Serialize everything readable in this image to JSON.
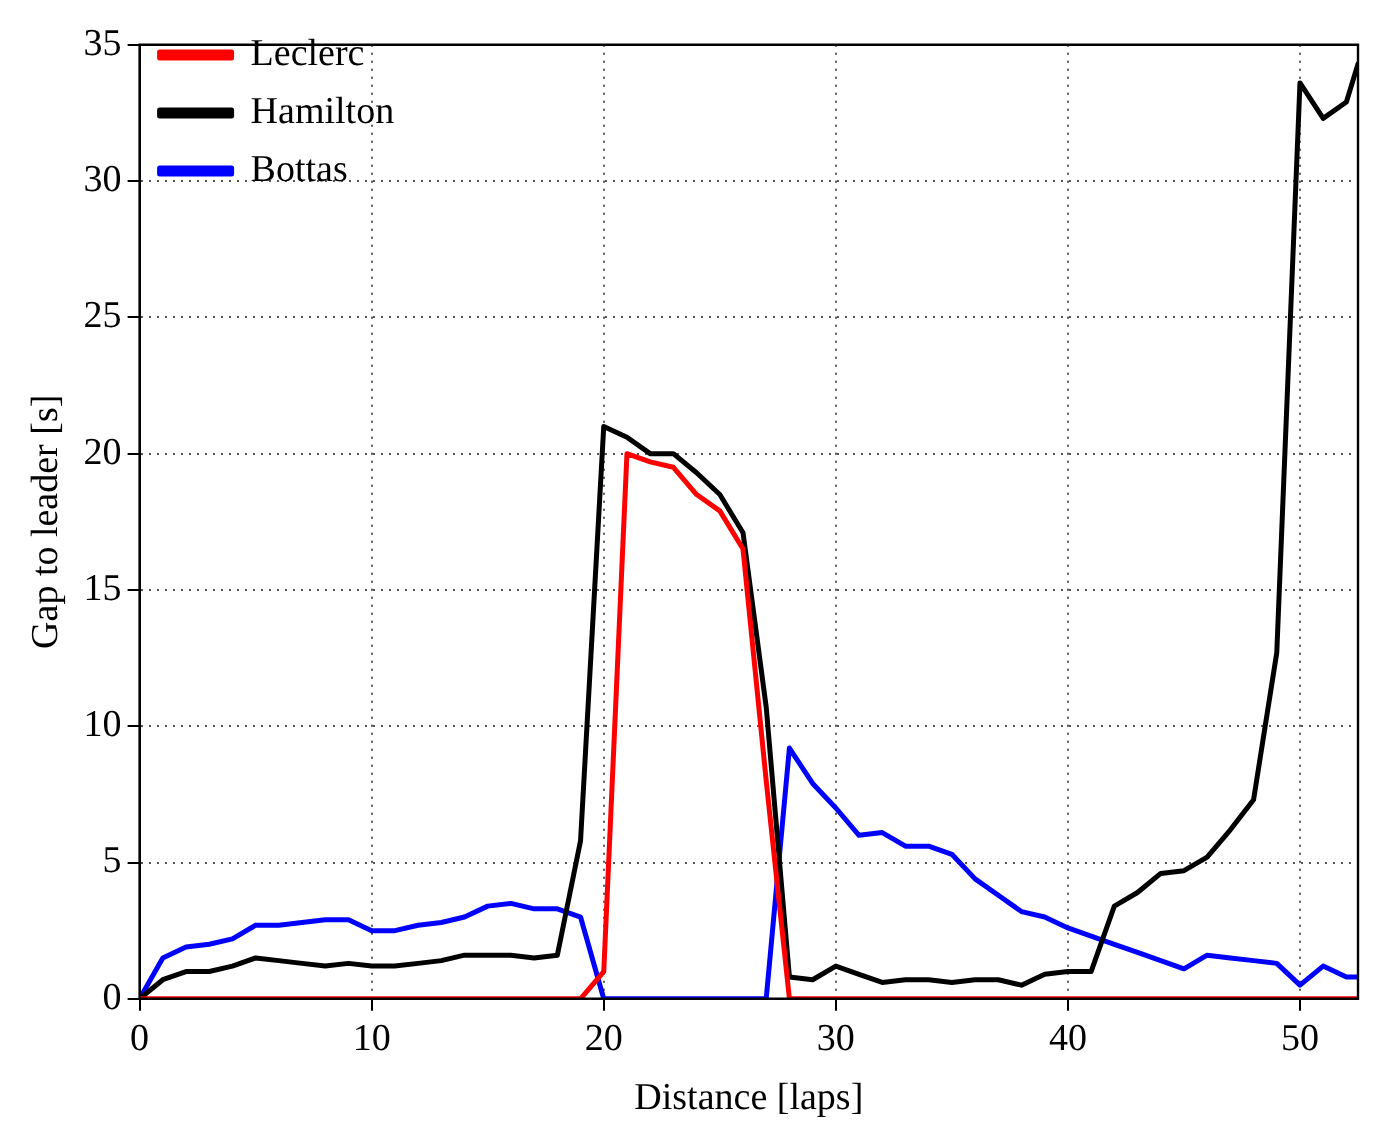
{
  "chart_data": {
    "type": "line",
    "xlabel": "Distance [laps]",
    "ylabel": "Gap to leader [s]",
    "x": [
      0,
      1,
      2,
      3,
      4,
      5,
      6,
      7,
      8,
      9,
      10,
      11,
      12,
      13,
      14,
      15,
      16,
      17,
      18,
      19,
      20,
      21,
      22,
      23,
      24,
      25,
      26,
      27,
      28,
      29,
      30,
      31,
      32,
      33,
      34,
      35,
      36,
      37,
      38,
      39,
      40,
      41,
      42,
      43,
      44,
      45,
      46,
      47,
      48,
      49,
      50,
      51,
      52,
      52.5
    ],
    "series": [
      {
        "name": "Leclerc",
        "color": "#ff0000",
        "values": [
          0,
          0,
          0,
          0,
          0,
          0,
          0,
          0,
          0,
          0,
          0,
          0,
          0,
          0,
          0,
          0,
          0,
          0,
          0,
          0,
          1.0,
          20.0,
          19.7,
          19.5,
          18.5,
          17.9,
          16.5,
          8.0,
          0,
          0,
          0,
          0,
          0,
          0,
          0,
          0,
          0,
          0,
          0,
          0,
          0,
          0,
          0,
          0,
          0,
          0,
          0,
          0,
          0,
          0,
          0,
          0,
          0,
          0
        ]
      },
      {
        "name": "Hamilton",
        "color": "#000000",
        "values": [
          0,
          0.7,
          1.0,
          1.0,
          1.2,
          1.5,
          1.4,
          1.3,
          1.2,
          1.3,
          1.2,
          1.2,
          1.3,
          1.4,
          1.6,
          1.6,
          1.6,
          1.5,
          1.6,
          5.8,
          21.0,
          20.6,
          20.0,
          20.0,
          19.3,
          18.5,
          17.1,
          10.7,
          0.8,
          0.7,
          1.2,
          0.9,
          0.6,
          0.7,
          0.7,
          0.6,
          0.7,
          0.7,
          0.5,
          0.9,
          1.0,
          1.0,
          3.4,
          3.9,
          4.6,
          4.7,
          5.2,
          6.2,
          7.3,
          12.7,
          33.6,
          32.3,
          32.9,
          34.3
        ]
      },
      {
        "name": "Bottas",
        "color": "#0000ff",
        "values": [
          0,
          1.5,
          1.9,
          2.0,
          2.2,
          2.7,
          2.7,
          2.8,
          2.9,
          2.9,
          2.5,
          2.5,
          2.7,
          2.8,
          3.0,
          3.4,
          3.5,
          3.3,
          3.3,
          3.0,
          0,
          0,
          0,
          0,
          0,
          0,
          0,
          0,
          9.2,
          7.9,
          7.0,
          6.0,
          6.1,
          5.6,
          5.6,
          5.3,
          4.4,
          3.8,
          3.2,
          3.0,
          2.6,
          2.3,
          2.0,
          1.7,
          1.4,
          1.1,
          1.6,
          1.5,
          1.4,
          1.3,
          0.5,
          1.2,
          0.8,
          0.8
        ]
      }
    ],
    "xlim": [
      0,
      52.5
    ],
    "xticks": [
      0,
      10,
      20,
      30,
      40,
      50
    ],
    "ylim": [
      0,
      35
    ],
    "yticks": [
      0,
      5,
      10,
      15,
      20,
      25,
      30,
      35
    ],
    "grid": true,
    "legend": "top left",
    "marker": "none",
    "line_style": "solid"
  }
}
